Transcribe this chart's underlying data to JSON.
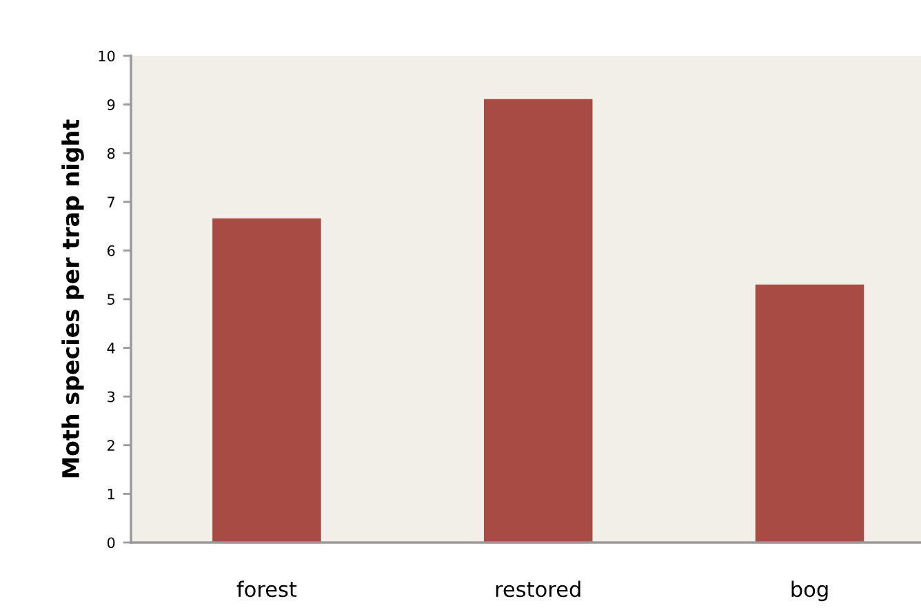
{
  "chart_data": {
    "type": "bar",
    "ylabel": "Moth species per trap night",
    "categories": [
      "forest",
      "restored",
      "bog"
    ],
    "values": [
      6.66,
      9.11,
      5.3
    ],
    "color": "#a84b45",
    "ylim": [
      0,
      10
    ],
    "yticks": [
      0,
      1,
      2,
      3,
      4,
      5,
      6,
      7,
      8,
      9,
      10
    ],
    "grid": false,
    "legend": false
  }
}
